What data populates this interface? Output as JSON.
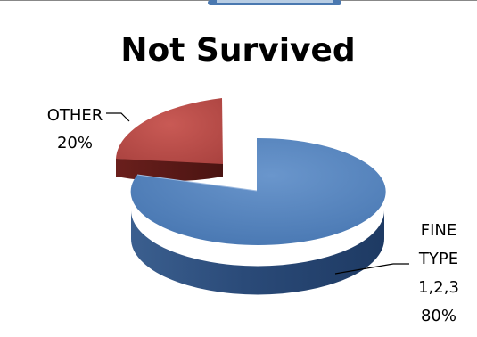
{
  "chart_data": {
    "type": "pie",
    "title": "Not Survived",
    "three_d": true,
    "exploded": true,
    "slices": [
      {
        "label_lines": [
          "FINE",
          "TYPE",
          "1,2,3"
        ],
        "pct_label": "80%",
        "value": 80,
        "color": "#4F81BD"
      },
      {
        "label_lines": [
          "OTHER"
        ],
        "pct_label": "20%",
        "value": 20,
        "color": "#C0504D"
      }
    ]
  }
}
